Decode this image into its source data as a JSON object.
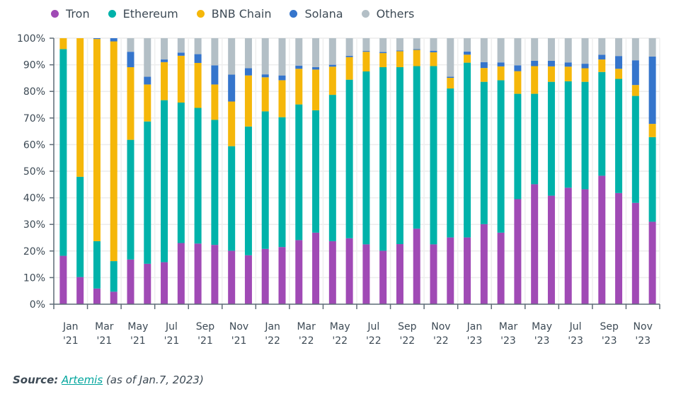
{
  "chart_data": {
    "type": "bar",
    "stacked": true,
    "title": "",
    "xlabel": "",
    "ylabel": "",
    "ylim": [
      0,
      100
    ],
    "y_ticks": [
      "0%",
      "10%",
      "20%",
      "30%",
      "40%",
      "50%",
      "60%",
      "70%",
      "80%",
      "90%",
      "100%"
    ],
    "x_tick_labels": [
      [
        "Jan",
        "'21"
      ],
      [
        "Mar",
        "'21"
      ],
      [
        "May",
        "'21"
      ],
      [
        "Jul",
        "'21"
      ],
      [
        "Sep",
        "'21"
      ],
      [
        "Nov",
        "'21"
      ],
      [
        "Jan",
        "'22"
      ],
      [
        "Mar",
        "'22"
      ],
      [
        "May",
        "'22"
      ],
      [
        "Jul",
        "'22"
      ],
      [
        "Sep",
        "'22"
      ],
      [
        "Nov",
        "'22"
      ],
      [
        "Jan",
        "'23"
      ],
      [
        "Mar",
        "'23"
      ],
      [
        "May",
        "'23"
      ],
      [
        "Jul",
        "'23"
      ],
      [
        "Sep",
        "'23"
      ],
      [
        "Nov",
        "'23"
      ]
    ],
    "categories": [
      "Jan '21",
      "Feb '21",
      "Mar '21",
      "Apr '21",
      "May '21",
      "Jun '21",
      "Jul '21",
      "Aug '21",
      "Sep '21",
      "Oct '21",
      "Nov '21",
      "Dec '21",
      "Jan '22",
      "Feb '22",
      "Mar '22",
      "Apr '22",
      "May '22",
      "Jun '22",
      "Jul '22",
      "Aug '22",
      "Sep '22",
      "Oct '22",
      "Nov '22",
      "Dec '22",
      "Jan '23",
      "Feb '23",
      "Mar '23",
      "Apr '23",
      "May '23",
      "Jun '23",
      "Jul '23",
      "Aug '23",
      "Sep '23",
      "Oct '23",
      "Nov '23",
      "Dec '23"
    ],
    "legend_position": "top-left",
    "grid": true,
    "series": [
      {
        "name": "Tron",
        "color": "#a04ab5",
        "values": [
          18.2,
          10.2,
          5.9,
          4.7,
          16.8,
          15.2,
          15.8,
          23.0,
          22.8,
          22.3,
          20.1,
          18.4,
          20.8,
          21.5,
          24.1,
          26.9,
          23.7,
          24.8,
          22.5,
          20.1,
          22.6,
          28.4,
          22.5,
          25.1,
          25.1,
          30.1,
          26.9,
          39.5,
          45.1,
          40.8,
          43.8,
          43.2,
          48.3,
          41.8,
          38.1,
          31.0
        ]
      },
      {
        "name": "Ethereum",
        "color": "#00b2aa",
        "values": [
          77.7,
          37.7,
          17.8,
          11.5,
          45.0,
          53.5,
          60.9,
          52.8,
          51.0,
          47.0,
          39.3,
          48.4,
          51.7,
          48.8,
          51.0,
          46.0,
          55.0,
          59.6,
          65.0,
          69.0,
          66.5,
          61.1,
          67.0,
          56.0,
          65.7,
          53.5,
          57.3,
          39.6,
          34.0,
          42.8,
          40.0,
          40.4,
          39.0,
          42.9,
          40.2,
          31.8
        ]
      },
      {
        "name": "BNB Chain",
        "color": "#f5b70a",
        "values": [
          4.1,
          52.1,
          76.0,
          82.6,
          27.3,
          13.9,
          14.3,
          17.6,
          16.9,
          13.3,
          16.8,
          19.2,
          12.8,
          13.9,
          13.4,
          15.3,
          10.6,
          8.5,
          7.4,
          5.3,
          6.0,
          6.1,
          5.2,
          4.0,
          3.0,
          5.2,
          5.2,
          8.5,
          10.4,
          5.8,
          5.5,
          5.1,
          4.7,
          3.8,
          4.1,
          5.0
        ]
      },
      {
        "name": "Solana",
        "color": "#3575cc",
        "values": [
          0,
          0,
          0.3,
          1.2,
          5.8,
          2.9,
          1.0,
          1.2,
          3.3,
          7.2,
          10.1,
          2.7,
          1.1,
          1.8,
          1.2,
          0.9,
          0.7,
          0.5,
          0.3,
          0.4,
          0.3,
          0.3,
          0.6,
          0.4,
          1.2,
          2.2,
          1.5,
          2.2,
          2.0,
          2.1,
          1.6,
          1.7,
          1.8,
          4.8,
          9.3,
          25.3
        ]
      },
      {
        "name": "Others",
        "color": "#b3bfc6",
        "values": [
          0,
          0,
          0,
          0,
          5.1,
          14.5,
          8.0,
          5.4,
          6.0,
          10.2,
          13.7,
          11.3,
          13.6,
          14.0,
          10.3,
          10.9,
          10.0,
          6.6,
          4.8,
          5.2,
          4.6,
          4.1,
          4.7,
          14.5,
          5.0,
          9.0,
          9.1,
          10.2,
          8.5,
          8.5,
          9.1,
          9.6,
          6.2,
          6.7,
          8.3,
          6.9
        ]
      }
    ]
  },
  "source": {
    "label": "Source:",
    "link_text": "Artemis",
    "note": "(as of Jan.7, 2023)"
  }
}
